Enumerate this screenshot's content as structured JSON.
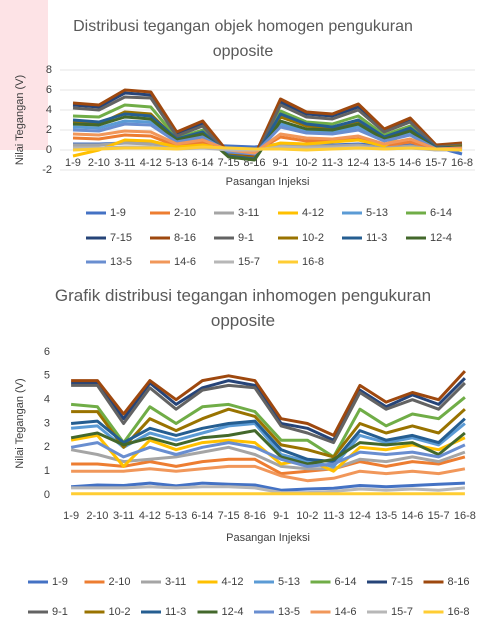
{
  "chart_data": [
    {
      "type": "line",
      "title": "Distribusi tegangan objek homogen pengukuran opposite",
      "xlabel": "Pasangan Injeksi",
      "ylabel": "Nilai Tegangan (V)",
      "categories": [
        "1-9",
        "2-10",
        "3-11",
        "4-12",
        "5-13",
        "6-14",
        "7-15",
        "8-16",
        "9-1",
        "10-2",
        "11-3",
        "12-4",
        "13-5",
        "14-6",
        "15-7",
        "16-8"
      ],
      "ylim": [
        -2,
        8
      ],
      "yticks": [
        -2,
        0,
        2,
        4,
        6,
        8
      ],
      "grid": true,
      "legend": "bottom",
      "series": [
        {
          "name": "1-9",
          "color": "#4472c4",
          "values": [
            0.6,
            0.6,
            0.7,
            0.7,
            0.5,
            0.5,
            0.4,
            0.3,
            0.6,
            0.5,
            0.5,
            0.6,
            0.4,
            0.5,
            0.3,
            -0.4
          ]
        },
        {
          "name": "2-10",
          "color": "#ed7d31",
          "values": [
            1.2,
            1.1,
            1.5,
            1.4,
            0.4,
            0.8,
            0.0,
            -0.2,
            1.3,
            0.9,
            0.9,
            1.1,
            0.4,
            0.8,
            0.0,
            0.1
          ]
        },
        {
          "name": "3-11",
          "color": "#a5a5a5",
          "values": [
            0.5,
            0.5,
            0.7,
            0.6,
            0.3,
            0.4,
            0.1,
            0.0,
            0.6,
            0.4,
            0.4,
            0.5,
            0.2,
            0.4,
            0.0,
            0.1
          ]
        },
        {
          "name": "4-12",
          "color": "#ffc000",
          "values": [
            -0.6,
            0.0,
            1.0,
            0.9,
            0.3,
            0.5,
            0.1,
            0.0,
            0.7,
            0.6,
            0.8,
            1.0,
            0.4,
            2.0,
            0.1,
            0.1
          ]
        },
        {
          "name": "5-13",
          "color": "#5b9bd5",
          "values": [
            2.3,
            2.2,
            2.9,
            2.8,
            0.9,
            1.4,
            -0.3,
            -0.5,
            2.6,
            1.9,
            1.8,
            2.3,
            1.0,
            1.7,
            0.1,
            0.2
          ]
        },
        {
          "name": "6-14",
          "color": "#70ad47",
          "values": [
            3.4,
            3.3,
            4.5,
            4.3,
            1.2,
            2.0,
            -0.4,
            -0.7,
            3.9,
            2.8,
            2.6,
            3.4,
            1.5,
            2.4,
            0.3,
            0.4
          ]
        },
        {
          "name": "7-15",
          "color": "#264478",
          "values": [
            4.5,
            4.3,
            5.7,
            5.5,
            1.6,
            2.7,
            -0.5,
            -0.8,
            4.8,
            3.6,
            3.4,
            4.3,
            1.9,
            3.0,
            0.4,
            0.6
          ]
        },
        {
          "name": "8-16",
          "color": "#9e480e",
          "values": [
            4.7,
            4.5,
            6.0,
            5.8,
            1.8,
            2.9,
            -0.3,
            -0.6,
            5.1,
            3.8,
            3.6,
            4.6,
            2.1,
            3.2,
            0.5,
            0.7
          ]
        },
        {
          "name": "9-1",
          "color": "#636363",
          "values": [
            4.2,
            4.0,
            5.3,
            5.2,
            1.4,
            2.4,
            -0.6,
            -0.9,
            4.5,
            3.3,
            3.1,
            4.0,
            1.8,
            2.8,
            0.3,
            0.5
          ]
        },
        {
          "name": "10-2",
          "color": "#997300",
          "values": [
            2.8,
            2.6,
            3.8,
            3.6,
            1.0,
            1.7,
            -0.5,
            -0.8,
            3.3,
            2.4,
            2.2,
            2.9,
            1.2,
            2.1,
            0.2,
            0.4
          ]
        },
        {
          "name": "11-3",
          "color": "#255e91",
          "values": [
            3.0,
            2.8,
            3.6,
            3.4,
            1.1,
            1.8,
            -0.6,
            -0.9,
            3.6,
            2.6,
            2.3,
            3.0,
            1.3,
            2.2,
            0.2,
            0.3
          ]
        },
        {
          "name": "12-4",
          "color": "#43682b",
          "values": [
            2.6,
            2.5,
            3.3,
            3.1,
            1.0,
            1.6,
            -0.7,
            -1.0,
            2.9,
            2.1,
            2.0,
            2.6,
            1.1,
            1.9,
            0.1,
            0.3
          ]
        },
        {
          "name": "13-5",
          "color": "#698ed0",
          "values": [
            2.0,
            1.9,
            2.6,
            2.5,
            0.8,
            1.3,
            -0.2,
            -0.4,
            2.3,
            1.7,
            1.6,
            2.0,
            0.9,
            1.5,
            0.1,
            0.2
          ]
        },
        {
          "name": "14-6",
          "color": "#f1975a",
          "values": [
            1.6,
            1.5,
            1.9,
            1.8,
            0.6,
            1.0,
            0.0,
            -0.3,
            1.6,
            1.2,
            1.1,
            1.4,
            0.6,
            1.1,
            0.1,
            0.2
          ]
        },
        {
          "name": "15-7",
          "color": "#b7b7b7",
          "values": [
            0.2,
            0.2,
            0.3,
            0.3,
            0.1,
            0.2,
            0.0,
            0.0,
            0.3,
            0.2,
            0.2,
            0.3,
            0.1,
            0.2,
            0.0,
            0.0
          ]
        },
        {
          "name": "16-8",
          "color": "#ffcd33",
          "values": [
            0.0,
            0.1,
            0.2,
            0.2,
            0.1,
            0.3,
            0.2,
            0.1,
            0.1,
            0.0,
            0.1,
            0.2,
            0.1,
            0.2,
            0.1,
            0.0
          ]
        }
      ]
    },
    {
      "type": "line",
      "title": "Grafik distribusi tegangan inhomogen pengukuran opposite",
      "xlabel": "Pasangan Injeksi",
      "ylabel": "Nilai Tegangan (V)",
      "categories": [
        "1-9",
        "2-10",
        "3-11",
        "4-12",
        "5-13",
        "6-14",
        "7-15",
        "8-16",
        "9-1",
        "10-2",
        "11-3",
        "12-4",
        "13-5",
        "14-6",
        "15-7",
        "16-8"
      ],
      "ylim": [
        0,
        6
      ],
      "yticks": [
        0,
        1,
        2,
        3,
        4,
        5,
        6
      ],
      "grid": false,
      "legend": "bottom",
      "series": [
        {
          "name": "1-9",
          "color": "#4472c4",
          "values": [
            0.35,
            0.42,
            0.4,
            0.5,
            0.38,
            0.5,
            0.45,
            0.42,
            0.2,
            0.25,
            0.28,
            0.4,
            0.35,
            0.4,
            0.45,
            0.5
          ]
        },
        {
          "name": "2-10",
          "color": "#ed7d31",
          "values": [
            1.3,
            1.3,
            1.2,
            1.4,
            1.2,
            1.4,
            1.5,
            1.5,
            0.9,
            1.0,
            1.1,
            1.4,
            1.2,
            1.4,
            1.3,
            1.6
          ]
        },
        {
          "name": "3-11",
          "color": "#a5a5a5",
          "values": [
            1.9,
            1.7,
            1.4,
            1.5,
            1.6,
            1.8,
            2.0,
            1.7,
            1.2,
            1.1,
            1.1,
            1.5,
            1.4,
            1.6,
            1.4,
            1.8
          ]
        },
        {
          "name": "4-12",
          "color": "#ffc000",
          "values": [
            2.3,
            2.5,
            1.2,
            2.3,
            1.9,
            2.2,
            2.3,
            2.2,
            1.3,
            1.5,
            1.0,
            2.0,
            1.9,
            2.1,
            1.9,
            2.4
          ]
        },
        {
          "name": "5-13",
          "color": "#5b9bd5",
          "values": [
            2.8,
            2.9,
            2.0,
            2.6,
            2.3,
            2.6,
            2.9,
            3.0,
            1.7,
            1.4,
            1.2,
            2.5,
            2.2,
            2.4,
            2.1,
            3.0
          ]
        },
        {
          "name": "6-14",
          "color": "#70ad47",
          "values": [
            3.8,
            3.7,
            2.2,
            3.7,
            3.0,
            3.7,
            3.8,
            3.5,
            2.3,
            2.3,
            1.6,
            3.6,
            2.9,
            3.4,
            3.2,
            4.1
          ]
        },
        {
          "name": "7-15",
          "color": "#264478",
          "values": [
            4.7,
            4.7,
            3.2,
            4.7,
            3.8,
            4.5,
            4.8,
            4.6,
            3.0,
            2.8,
            2.3,
            4.4,
            3.7,
            4.2,
            3.8,
            4.9
          ]
        },
        {
          "name": "8-16",
          "color": "#9e480e",
          "values": [
            4.8,
            4.8,
            3.4,
            4.8,
            4.0,
            4.8,
            5.0,
            4.8,
            3.2,
            3.0,
            2.5,
            4.6,
            3.9,
            4.3,
            4.0,
            5.2
          ]
        },
        {
          "name": "9-1",
          "color": "#636363",
          "values": [
            4.6,
            4.6,
            3.0,
            4.5,
            3.6,
            4.4,
            4.6,
            4.5,
            2.9,
            2.6,
            2.2,
            4.3,
            3.6,
            4.0,
            3.6,
            4.7
          ]
        },
        {
          "name": "10-2",
          "color": "#997300",
          "values": [
            3.5,
            3.5,
            2.0,
            3.2,
            2.7,
            3.2,
            3.6,
            3.3,
            2.1,
            1.9,
            1.6,
            3.0,
            2.6,
            2.9,
            2.6,
            3.6
          ]
        },
        {
          "name": "11-3",
          "color": "#255e91",
          "values": [
            3.0,
            3.1,
            2.2,
            2.8,
            2.5,
            2.8,
            3.0,
            3.1,
            1.9,
            1.5,
            1.4,
            2.7,
            2.3,
            2.5,
            2.2,
            3.2
          ]
        },
        {
          "name": "12-4",
          "color": "#43682b",
          "values": [
            2.4,
            2.6,
            2.1,
            2.4,
            2.1,
            2.4,
            2.5,
            2.7,
            1.6,
            1.3,
            1.5,
            2.2,
            2.1,
            2.2,
            1.7,
            2.6
          ]
        },
        {
          "name": "13-5",
          "color": "#698ed0",
          "values": [
            2.0,
            2.2,
            1.6,
            2.0,
            1.7,
            2.0,
            2.2,
            2.0,
            1.5,
            1.2,
            1.3,
            1.8,
            1.7,
            1.8,
            1.6,
            2.1
          ]
        },
        {
          "name": "14-6",
          "color": "#f1975a",
          "values": [
            1.0,
            1.0,
            1.0,
            1.1,
            1.0,
            1.1,
            1.2,
            1.2,
            0.8,
            0.6,
            0.7,
            1.0,
            0.9,
            1.0,
            0.9,
            1.1
          ]
        },
        {
          "name": "15-7",
          "color": "#b7b7b7",
          "values": [
            0.3,
            0.3,
            0.3,
            0.35,
            0.3,
            0.35,
            0.35,
            0.3,
            0.1,
            0.1,
            0.15,
            0.25,
            0.2,
            0.25,
            0.2,
            0.3
          ]
        },
        {
          "name": "16-8",
          "color": "#ffcd33",
          "values": [
            0.05,
            0.05,
            0.05,
            0.05,
            0.05,
            0.05,
            0.05,
            0.05,
            0.05,
            0.05,
            0.05,
            0.05,
            0.05,
            0.05,
            0.05,
            0.05
          ]
        }
      ]
    }
  ]
}
